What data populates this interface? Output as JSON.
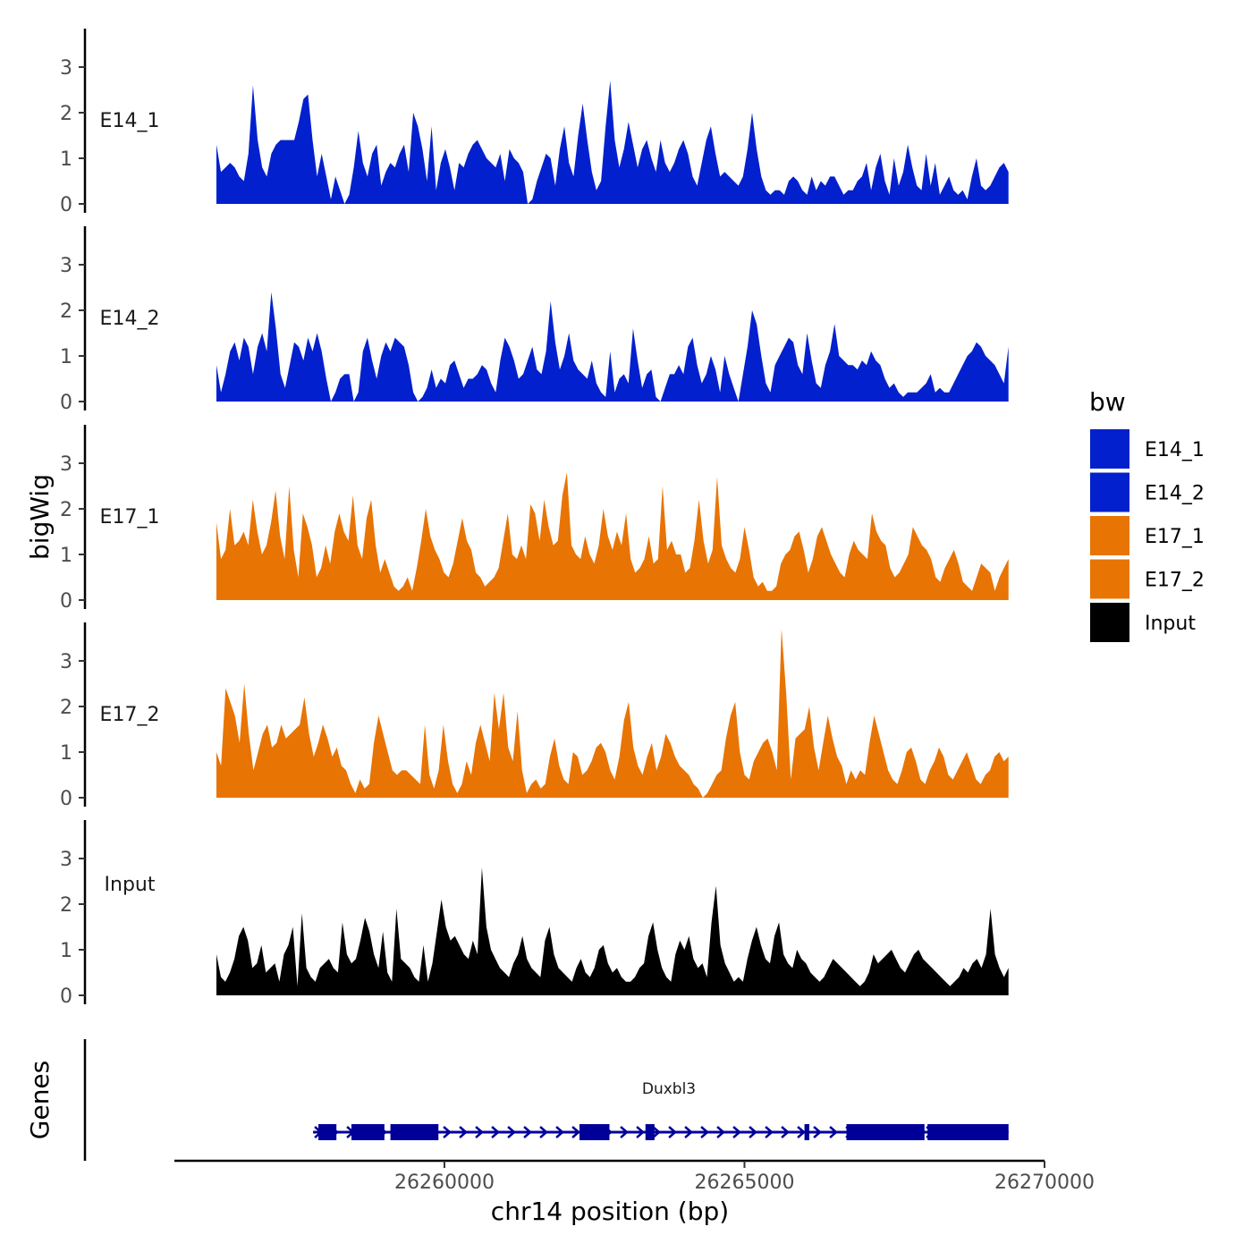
{
  "chart_data": {
    "type": "area",
    "ylabel": "bigWig",
    "xlabel": "chr14 position (bp)",
    "xlim": [
      26255500,
      26270000
    ],
    "x_ticks": [
      26260000,
      26265000,
      26270000
    ],
    "x_tick_labels": [
      "26260000",
      "26265000",
      "26270000"
    ],
    "ylim": [
      0,
      3.8
    ],
    "y_ticks": [
      0,
      1,
      2,
      3
    ],
    "y_tick_labels": [
      "0",
      "1",
      "2",
      "3"
    ],
    "x_start": 26256200,
    "x_end": 26269400,
    "tracks": [
      {
        "name": "E14_1",
        "color": "#0320CE",
        "values": [
          1.3,
          0.7,
          0.8,
          0.9,
          0.8,
          0.6,
          0.5,
          1.1,
          2.6,
          1.4,
          0.8,
          0.6,
          1.1,
          1.3,
          1.4,
          1.4,
          1.4,
          1.4,
          1.8,
          2.3,
          2.4,
          1.4,
          0.6,
          1.1,
          0.6,
          0.1,
          0.6,
          0.3,
          0,
          0.2,
          0.8,
          1.6,
          0.9,
          0.6,
          1.1,
          1.3,
          0.4,
          0.7,
          0.9,
          0.8,
          1.1,
          1.3,
          0.7,
          2,
          1.7,
          1.2,
          0.5,
          1.7,
          0.3,
          0.9,
          1.2,
          0.8,
          0.3,
          0.9,
          0.8,
          1.1,
          1.3,
          1.4,
          1.2,
          1.0,
          0.9,
          0.8,
          1.1,
          0.5,
          1.2,
          1.0,
          0.9,
          0.7,
          0,
          0.1,
          0.5,
          0.8,
          1.1,
          1.0,
          0.4,
          1.2,
          1.7,
          0.9,
          0.6,
          1.5,
          2.2,
          1.4,
          0.7,
          0.3,
          0.5,
          1.7,
          2.7,
          1.4,
          0.8,
          1.2,
          1.8,
          1.3,
          0.8,
          1.2,
          1.4,
          1.0,
          0.7,
          1.4,
          0.9,
          0.7,
          0.9,
          1.2,
          1.4,
          1.1,
          0.6,
          0.4,
          0.9,
          1.4,
          1.7,
          1.1,
          0.6,
          0.7,
          0.6,
          0.5,
          0.4,
          0.6,
          1.2,
          2,
          1.2,
          0.6,
          0.3,
          0.2,
          0.3,
          0.3,
          0.2,
          0.5,
          0.6,
          0.5,
          0.3,
          0.2,
          0.6,
          0.3,
          0.5,
          0.4,
          0.6,
          0.6,
          0.4,
          0.2,
          0.3,
          0.3,
          0.5,
          0.6,
          0.9,
          0.3,
          0.8,
          1.1,
          0.5,
          0.2,
          1.0,
          0.4,
          0.7,
          1.3,
          0.8,
          0.4,
          0.3,
          1.1,
          0.4,
          0.9,
          0.2,
          0.4,
          0.6,
          0.3,
          0.2,
          0.3,
          0.1,
          0.6,
          1.0,
          0.4,
          0.3,
          0.4,
          0.6,
          0.8,
          0.9,
          0.7
        ]
      },
      {
        "name": "E14_2",
        "color": "#0320CE",
        "values": [
          0.8,
          0.2,
          0.6,
          1.1,
          1.3,
          0.9,
          1.4,
          1.2,
          0.6,
          1.2,
          1.5,
          1.1,
          2.4,
          1.6,
          0.6,
          0.3,
          0.8,
          1.3,
          1.2,
          0.9,
          1.4,
          1.1,
          1.5,
          1.1,
          0.5,
          0,
          0.2,
          0.5,
          0.6,
          0.6,
          0,
          0.2,
          1.1,
          1.4,
          0.9,
          0.5,
          1.0,
          1.3,
          1.1,
          1.4,
          1.3,
          1.2,
          0.8,
          0.2,
          0,
          0.1,
          0.3,
          0.7,
          0.3,
          0.5,
          0.4,
          0.8,
          0.9,
          0.6,
          0.3,
          0.5,
          0.5,
          0.6,
          0.8,
          0.7,
          0.4,
          0.2,
          0.9,
          1.4,
          1.2,
          0.9,
          0.5,
          0.6,
          0.9,
          1.2,
          0.7,
          0.6,
          1.1,
          2.2,
          1.3,
          0.7,
          1.0,
          1.5,
          0.9,
          0.7,
          0.6,
          0.5,
          0.9,
          0.4,
          0.2,
          0.1,
          1.1,
          0.2,
          0.5,
          0.6,
          0.4,
          1.6,
          0.9,
          0.3,
          0.6,
          0.7,
          0.1,
          0,
          0.3,
          0.6,
          0.6,
          0.8,
          0.6,
          1.2,
          1.4,
          0.8,
          0.4,
          0.6,
          1.0,
          0.7,
          0.2,
          1.0,
          0.6,
          0.3,
          0,
          0.6,
          1.2,
          2,
          1.7,
          1.0,
          0.4,
          0.2,
          0.8,
          1.0,
          1.2,
          1.4,
          1.3,
          0.8,
          0.6,
          1.5,
          0.9,
          0.4,
          0.3,
          0.8,
          1.1,
          1.7,
          1.0,
          0.9,
          0.8,
          0.8,
          0.7,
          0.9,
          0.8,
          1.1,
          0.9,
          0.8,
          0.5,
          0.3,
          0.4,
          0.2,
          0.1,
          0.2,
          0.2,
          0.2,
          0.3,
          0.4,
          0.6,
          0.2,
          0.3,
          0.2,
          0.2,
          0.4,
          0.6,
          0.8,
          1.0,
          1.1,
          1.3,
          1.2,
          1.0,
          0.9,
          0.8,
          0.6,
          0.4,
          1.2
        ]
      },
      {
        "name": "E17_1",
        "color": "#E87404",
        "values": [
          1.7,
          0.9,
          1.1,
          2.0,
          1.2,
          1.3,
          1.5,
          1.2,
          2.2,
          1.5,
          1.0,
          1.2,
          1.7,
          2.4,
          1.4,
          0.9,
          2.5,
          1.1,
          0.5,
          1.9,
          1.6,
          1.2,
          0.5,
          0.7,
          1.2,
          0.8,
          1.5,
          1.9,
          1.5,
          1.3,
          2.3,
          1.2,
          0.9,
          1.8,
          2.2,
          1.2,
          0.6,
          0.9,
          0.6,
          0.3,
          0.2,
          0.3,
          0.5,
          0.2,
          0.7,
          1.3,
          2.0,
          1.4,
          1.1,
          0.9,
          0.6,
          0.5,
          0.8,
          1.3,
          1.8,
          1.3,
          1.1,
          0.6,
          0.5,
          0.3,
          0.4,
          0.5,
          0.7,
          1.3,
          1.9,
          1.0,
          0.9,
          1.2,
          0.9,
          2.1,
          1.9,
          1.3,
          2.2,
          1.6,
          1.2,
          1.3,
          2.3,
          2.8,
          1.2,
          1.0,
          0.9,
          1.4,
          1.0,
          0.8,
          1.2,
          2.0,
          1.4,
          1.1,
          1.5,
          1.2,
          1.9,
          0.9,
          0.6,
          0.7,
          0.9,
          1.4,
          0.8,
          0.9,
          2.5,
          1.1,
          1.3,
          1.0,
          1.0,
          0.6,
          0.7,
          1.3,
          2.2,
          1.3,
          0.8,
          1.1,
          2.7,
          1.2,
          0.9,
          0.7,
          0.6,
          0.9,
          1.6,
          1.1,
          0.5,
          0.3,
          0.4,
          0.2,
          0.2,
          0.3,
          0.8,
          1.0,
          1.1,
          1.4,
          1.5,
          1.1,
          0.6,
          0.9,
          1.4,
          1.6,
          1.3,
          1.0,
          0.8,
          0.6,
          0.5,
          1.0,
          1.3,
          1.1,
          1.0,
          0.9,
          1.9,
          1.5,
          1.3,
          1.2,
          0.7,
          0.5,
          0.6,
          0.8,
          1.0,
          1.6,
          1.4,
          1.2,
          1.1,
          0.9,
          0.5,
          0.4,
          0.7,
          0.9,
          1.1,
          0.8,
          0.4,
          0.3,
          0.2,
          0.5,
          0.8,
          0.7,
          0.6,
          0.2,
          0.5,
          0.7,
          0.9
        ]
      },
      {
        "name": "E17_2",
        "color": "#E87404",
        "values": [
          1.0,
          0.7,
          2.4,
          2.1,
          1.8,
          1.2,
          2.5,
          1.4,
          0.6,
          1.0,
          1.4,
          1.6,
          1.1,
          1.2,
          1.6,
          1.3,
          1.4,
          1.5,
          1.6,
          2.2,
          1.4,
          0.9,
          1.2,
          1.6,
          1.3,
          0.9,
          1.1,
          0.7,
          0.6,
          0.3,
          0.1,
          0.4,
          0.2,
          0.3,
          1.2,
          1.8,
          1.4,
          1.0,
          0.6,
          0.5,
          0.6,
          0.6,
          0.5,
          0.4,
          0.3,
          1.6,
          0.5,
          0.2,
          0.6,
          1.6,
          0.8,
          0.3,
          0.1,
          0.3,
          0.8,
          0.5,
          1.2,
          1.6,
          1.2,
          0.8,
          2.3,
          1.5,
          2.3,
          1.1,
          0.8,
          1.9,
          0.6,
          0.1,
          0.3,
          0.4,
          0.2,
          0.3,
          0.9,
          1.3,
          0.7,
          0.4,
          0.3,
          1.0,
          0.9,
          0.5,
          0.6,
          0.8,
          1.1,
          1.2,
          1.0,
          0.6,
          0.4,
          0.9,
          1.7,
          2.1,
          1.1,
          0.7,
          0.5,
          0.9,
          1.2,
          0.6,
          0.9,
          1.4,
          1.2,
          0.9,
          0.7,
          0.6,
          0.5,
          0.3,
          0.2,
          0,
          0.1,
          0.3,
          0.5,
          0.6,
          1.3,
          1.8,
          2.1,
          1.0,
          0.5,
          0.4,
          0.8,
          1.0,
          1.2,
          1.3,
          1.0,
          0.6,
          3.7,
          2.3,
          0.4,
          1.3,
          1.4,
          1.5,
          2.0,
          1.1,
          0.6,
          1.2,
          1.8,
          1.3,
          0.9,
          0.7,
          0.3,
          0.6,
          0.4,
          0.6,
          0.5,
          1.2,
          1.8,
          1.4,
          1.0,
          0.6,
          0.4,
          0.3,
          0.6,
          1.0,
          1.1,
          0.8,
          0.4,
          0.3,
          0.6,
          0.8,
          1.1,
          0.9,
          0.5,
          0.4,
          0.6,
          0.8,
          1.0,
          0.7,
          0.4,
          0.3,
          0.5,
          0.6,
          0.9,
          1.0,
          0.8,
          0.9
        ]
      },
      {
        "name": "Input",
        "color": "#000000",
        "values": [
          0.9,
          0.4,
          0.3,
          0.5,
          0.8,
          1.3,
          1.5,
          1.2,
          0.6,
          0.7,
          1.1,
          0.5,
          0.6,
          0.7,
          0.3,
          0.9,
          1.1,
          1.5,
          0.2,
          1.8,
          0.6,
          0.4,
          0.3,
          0.6,
          0.7,
          0.8,
          0.6,
          0.5,
          1.6,
          0.9,
          0.7,
          0.8,
          1.2,
          1.7,
          1.4,
          0.9,
          0.6,
          1.4,
          0.5,
          0.3,
          1.9,
          0.8,
          0.7,
          0.6,
          0.4,
          0.3,
          1.1,
          0.3,
          0.7,
          1.4,
          2.1,
          1.5,
          1.2,
          1.3,
          1.1,
          0.9,
          0.8,
          1.2,
          0.9,
          2.8,
          1.5,
          1.0,
          0.8,
          0.6,
          0.5,
          0.4,
          0.7,
          0.9,
          1.3,
          0.8,
          0.6,
          0.5,
          0.4,
          1.2,
          1.5,
          0.9,
          0.6,
          0.5,
          0.4,
          0.3,
          0.6,
          0.8,
          0.5,
          0.4,
          0.6,
          1.0,
          1.1,
          0.7,
          0.5,
          0.6,
          0.4,
          0.3,
          0.3,
          0.4,
          0.6,
          0.7,
          1.3,
          1.6,
          1.0,
          0.6,
          0.4,
          0.3,
          0.9,
          1.2,
          1.0,
          1.3,
          0.8,
          0.6,
          0.7,
          0.4,
          1.6,
          2.4,
          1.1,
          0.7,
          0.5,
          0.3,
          0.4,
          0.3,
          0.8,
          1.2,
          1.5,
          1.1,
          0.8,
          0.7,
          1.3,
          1.6,
          0.9,
          0.7,
          0.6,
          1.0,
          0.8,
          0.7,
          0.5,
          0.4,
          0.3,
          0.4,
          0.6,
          0.8,
          0.7,
          0.6,
          0.5,
          0.4,
          0.3,
          0.2,
          0.3,
          0.5,
          0.9,
          0.7,
          0.8,
          0.9,
          1.0,
          0.8,
          0.6,
          0.5,
          0.7,
          0.9,
          1.0,
          0.8,
          0.7,
          0.6,
          0.5,
          0.4,
          0.3,
          0.2,
          0.3,
          0.4,
          0.6,
          0.5,
          0.7,
          0.8,
          0.6,
          0.9,
          1.9,
          0.9,
          0.6,
          0.4,
          0.6
        ]
      }
    ],
    "genes": {
      "label": "Genes",
      "color": "#000099",
      "gene_name": "Duxbl3",
      "strand": "+",
      "start": 26257900,
      "end": 26269400,
      "exons": [
        {
          "start": 26257900,
          "end": 26258200
        },
        {
          "start": 26258450,
          "end": 26259000
        },
        {
          "start": 26259100,
          "end": 26259900
        },
        {
          "start": 26262250,
          "end": 26262750
        },
        {
          "start": 26263350,
          "end": 26263500
        },
        {
          "start": 26266000,
          "end": 26266080
        },
        {
          "start": 26266700,
          "end": 26268000
        },
        {
          "start": 26268050,
          "end": 26269400
        }
      ]
    },
    "legend": {
      "title": "bw",
      "position": "right",
      "entries": [
        {
          "label": "E14_1",
          "color": "#0320CE"
        },
        {
          "label": "E14_2",
          "color": "#0320CE"
        },
        {
          "label": "E17_1",
          "color": "#E87404"
        },
        {
          "label": "E17_2",
          "color": "#E87404"
        },
        {
          "label": "Input",
          "color": "#000000"
        }
      ]
    }
  }
}
